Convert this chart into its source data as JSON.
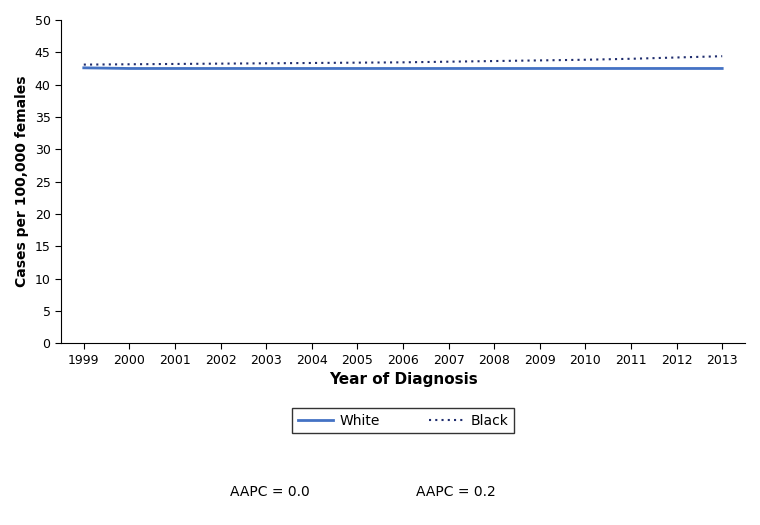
{
  "years": [
    1999,
    2000,
    2001,
    2002,
    2003,
    2004,
    2005,
    2006,
    2007,
    2008,
    2009,
    2010,
    2011,
    2012,
    2013
  ],
  "white_values": [
    42.6,
    42.5,
    42.5,
    42.5,
    42.5,
    42.5,
    42.5,
    42.5,
    42.5,
    42.5,
    42.5,
    42.5,
    42.5,
    42.5,
    42.5
  ],
  "black_values": [
    43.1,
    43.15,
    43.2,
    43.25,
    43.3,
    43.35,
    43.4,
    43.45,
    43.55,
    43.65,
    43.75,
    43.85,
    44.0,
    44.2,
    44.4
  ],
  "white_color": "#4472C4",
  "black_color": "#1F2D6E",
  "white_label": "White",
  "black_label": "Black",
  "white_aapc": "AAPC = 0.0",
  "black_aapc": "AAPC = 0.2",
  "xlabel": "Year of Diagnosis",
  "ylabel": "Cases per 100,000 females",
  "ylim": [
    0,
    50
  ],
  "xlim": [
    1999,
    2013
  ],
  "yticks": [
    0,
    5,
    10,
    15,
    20,
    25,
    30,
    35,
    40,
    45,
    50
  ],
  "background_color": "#ffffff"
}
